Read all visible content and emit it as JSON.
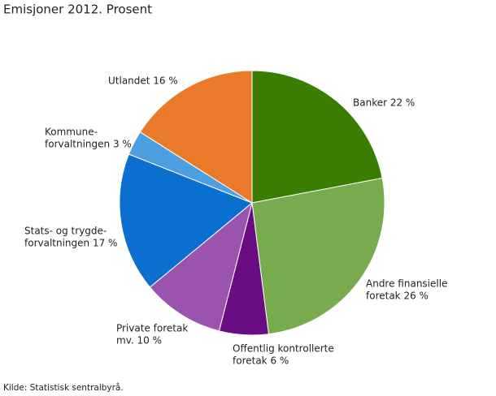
{
  "chart_data": {
    "type": "pie",
    "title": "Emisjoner 2012. Prosent",
    "labels": [
      [
        "Banker 22 %"
      ],
      [
        "Andre finansielle",
        "foretak 26 %"
      ],
      [
        "Offentlig kontrollerte",
        "foretak 6 %"
      ],
      [
        "Private foretak",
        "mv. 10 %"
      ],
      [
        "Stats- og trygde-",
        "forvaltningen 17 %"
      ],
      [
        "Kommune-",
        "forvaltningen 3 %"
      ],
      [
        "Utlandet 16 %"
      ]
    ],
    "values": [
      22,
      26,
      6,
      10,
      17,
      3,
      16
    ],
    "colors": [
      "#3a7d00",
      "#78ab4e",
      "#6a0d83",
      "#9a54b0",
      "#0a6fce",
      "#4d9fe0",
      "#e87a2a"
    ],
    "source": "Kilde: Statistisk sentralbyrå."
  }
}
